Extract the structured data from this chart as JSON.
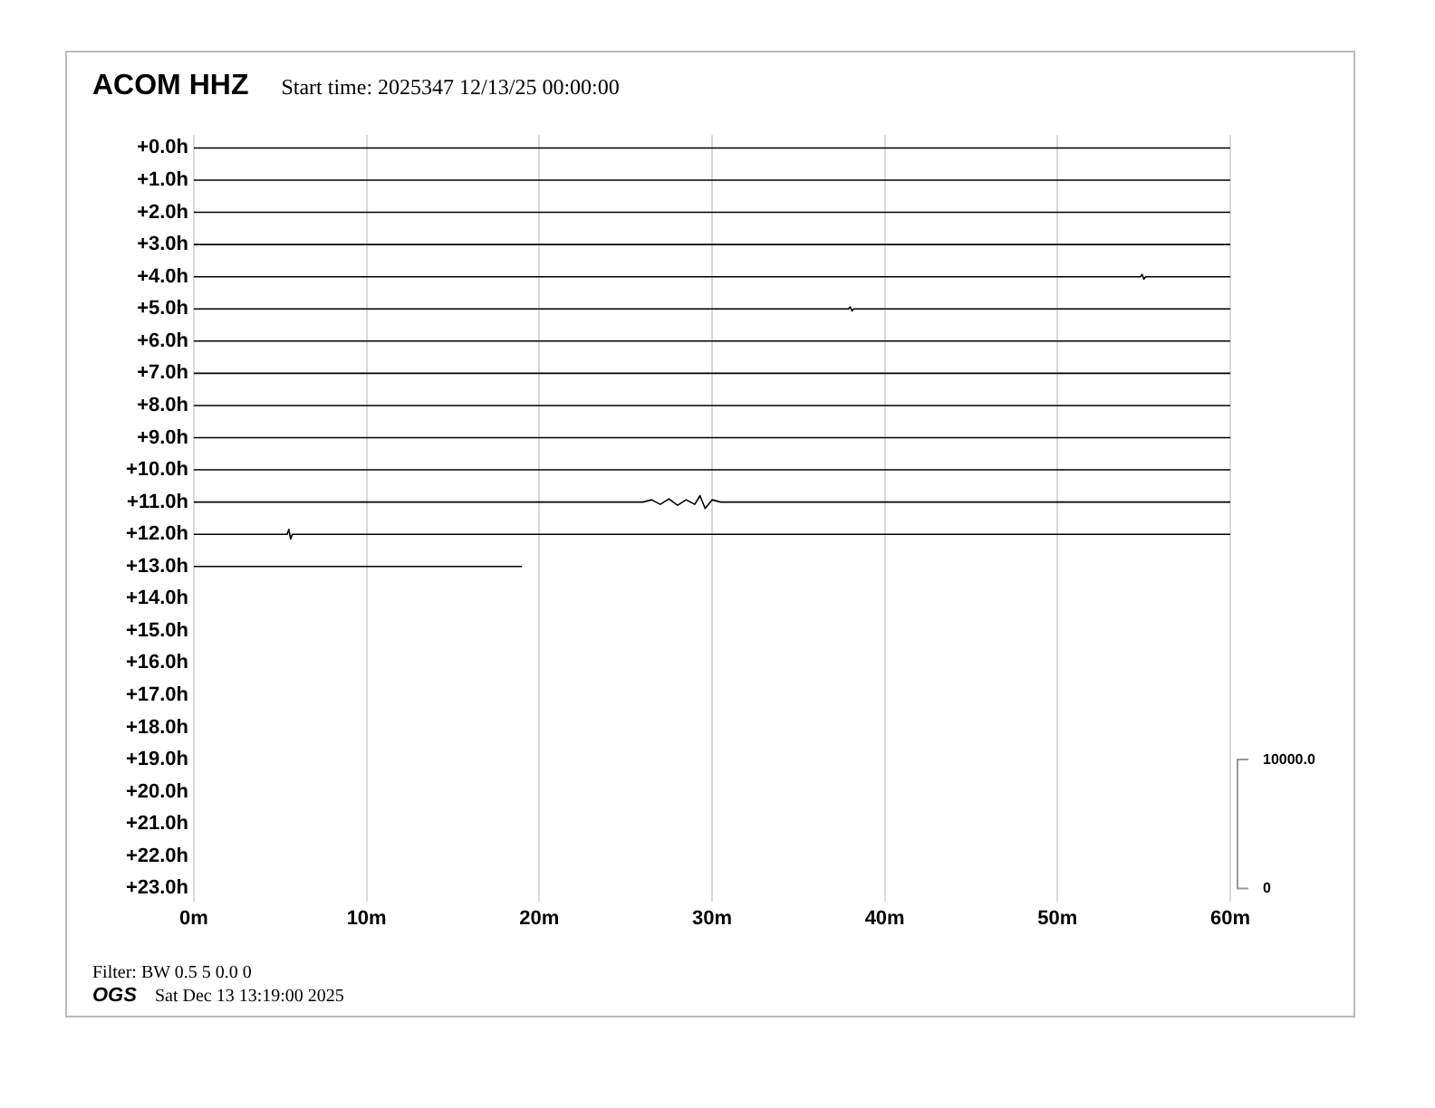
{
  "chart_data": {
    "type": "line",
    "title": "ACOM HHZ",
    "subtitle": "Start time: 2025347 12/13/25 00:00:00",
    "annotations": [
      "Filter: BW 0.5 5 0.0 0",
      "OGS",
      "Sat Dec 13 13:19:00 2025"
    ],
    "xlim": [
      0,
      60
    ],
    "xticks": [
      {
        "value": 0,
        "label": "0m"
      },
      {
        "value": 10,
        "label": "10m"
      },
      {
        "value": 20,
        "label": "20m"
      },
      {
        "value": 30,
        "label": "30m"
      },
      {
        "value": 40,
        "label": "40m"
      },
      {
        "value": 50,
        "label": "50m"
      },
      {
        "value": 60,
        "label": "60m"
      }
    ],
    "ylim": [
      23.4,
      -0.4
    ],
    "yticks": [
      {
        "value": 0,
        "label": "+0.0h"
      },
      {
        "value": 1,
        "label": "+1.0h"
      },
      {
        "value": 2,
        "label": "+2.0h"
      },
      {
        "value": 3,
        "label": "+3.0h"
      },
      {
        "value": 4,
        "label": "+4.0h"
      },
      {
        "value": 5,
        "label": "+5.0h"
      },
      {
        "value": 6,
        "label": "+6.0h"
      },
      {
        "value": 7,
        "label": "+7.0h"
      },
      {
        "value": 8,
        "label": "+8.0h"
      },
      {
        "value": 9,
        "label": "+9.0h"
      },
      {
        "value": 10,
        "label": "+10.0h"
      },
      {
        "value": 11,
        "label": "+11.0h"
      },
      {
        "value": 12,
        "label": "+12.0h"
      },
      {
        "value": 13,
        "label": "+13.0h"
      },
      {
        "value": 14,
        "label": "+14.0h"
      },
      {
        "value": 15,
        "label": "+15.0h"
      },
      {
        "value": 16,
        "label": "+16.0h"
      },
      {
        "value": 17,
        "label": "+17.0h"
      },
      {
        "value": 18,
        "label": "+18.0h"
      },
      {
        "value": 19,
        "label": "+19.0h"
      },
      {
        "value": 20,
        "label": "+20.0h"
      },
      {
        "value": 21,
        "label": "+21.0h"
      },
      {
        "value": 22,
        "label": "+22.0h"
      },
      {
        "value": 23,
        "label": "+23.0h"
      }
    ],
    "y2lim": [
      -1000,
      58500
    ],
    "y2ticks": [
      0,
      {
        "value": 10000,
        "label": "10000.0"
      }
    ],
    "grid": "x",
    "legend": false,
    "marker": "none",
    "series": [
      {
        "color": "#000000",
        "x": [
          0,
          60
        ],
        "values": [
          0,
          0
        ]
      },
      {
        "color": "#000000",
        "x": [
          0,
          60
        ],
        "values": [
          1,
          1
        ]
      },
      {
        "color": "#000000",
        "x": [
          0,
          60
        ],
        "values": [
          2,
          2
        ]
      },
      {
        "color": "#000000",
        "x": [
          0,
          60
        ],
        "values": [
          3,
          3
        ]
      },
      {
        "color": "#000000",
        "x": [
          0,
          54.8,
          54.9,
          55,
          55.1,
          60
        ],
        "values": [
          4,
          4,
          3.93,
          4.07,
          4,
          4
        ]
      },
      {
        "color": "#000000",
        "x": [
          0,
          37.9,
          38,
          38.1,
          38.2,
          60
        ],
        "values": [
          5,
          5,
          4.94,
          5.06,
          5,
          5
        ]
      },
      {
        "color": "#000000",
        "x": [
          0,
          60
        ],
        "values": [
          6,
          6
        ]
      },
      {
        "color": "#000000",
        "x": [
          0,
          60
        ],
        "values": [
          7,
          7
        ]
      },
      {
        "color": "#000000",
        "x": [
          0,
          60
        ],
        "values": [
          8,
          8
        ]
      },
      {
        "color": "#000000",
        "x": [
          0,
          60
        ],
        "values": [
          9,
          9
        ]
      },
      {
        "color": "#000000",
        "x": [
          0,
          60
        ],
        "values": [
          10,
          10
        ]
      },
      {
        "color": "#000000",
        "x": [
          0,
          26,
          26.5,
          27,
          27.5,
          28,
          28.5,
          29,
          29.3,
          29.6,
          30,
          30.5,
          60
        ],
        "values": [
          11,
          11,
          10.93,
          11.07,
          10.9,
          11.1,
          10.93,
          11.07,
          10.8,
          11.2,
          10.93,
          11,
          11
        ]
      },
      {
        "color": "#000000",
        "x": [
          0,
          5.4,
          5.5,
          5.6,
          5.7,
          60
        ],
        "values": [
          12,
          12,
          11.85,
          12.15,
          12,
          12
        ]
      },
      {
        "color": "#000000",
        "x": [
          0,
          19
        ],
        "values": [
          13,
          13
        ]
      }
    ]
  }
}
